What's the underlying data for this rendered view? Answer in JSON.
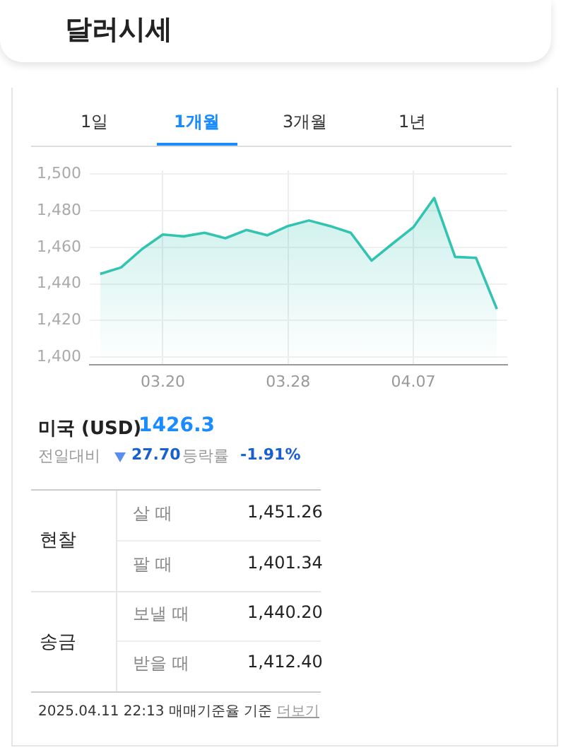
{
  "chart_data": {
    "type": "area",
    "title": "달러시세",
    "categories": [
      null,
      null,
      null,
      "03.20",
      null,
      null,
      null,
      null,
      null,
      "03.28",
      null,
      null,
      null,
      null,
      null,
      "04.07",
      null,
      null,
      null,
      null
    ],
    "series": [
      {
        "color": "#33c3b1",
        "values": [
          1445.5,
          1449,
          1459,
          1467,
          1466,
          1468,
          1465,
          1469.5,
          1466.6,
          1471.7,
          1474.7,
          1471.7,
          1468,
          1452.8,
          1462,
          1471,
          1487,
          1454.8,
          1454.3,
          1426.3
        ]
      }
    ],
    "ylim": [
      1396,
      1502
    ],
    "yticks": [
      {
        "value": 1400,
        "label": "1,400"
      },
      {
        "value": 1420,
        "label": "1,420"
      },
      {
        "value": 1440,
        "label": "1,440"
      },
      {
        "value": 1460,
        "label": "1,460"
      },
      {
        "value": 1480,
        "label": "1,480"
      },
      {
        "value": 1500,
        "label": "1,500"
      }
    ],
    "grid": true,
    "legend": false,
    "marker": "none",
    "line_style": "solid",
    "annotations": [
      "1일",
      "1개월",
      "3개월",
      "1년",
      "미국 (USD)",
      "1426.3",
      "전일대비",
      "27.70",
      "등락률",
      "-1.91%",
      "현찰",
      "살 때",
      "1,451.26",
      "팔 때",
      "1,401.34",
      "송금",
      "보낼 때",
      "1,440.20",
      "받을 때",
      "1,412.40",
      "2025.04.11 22:13 매매기준율 기준",
      "더보기"
    ]
  }
}
